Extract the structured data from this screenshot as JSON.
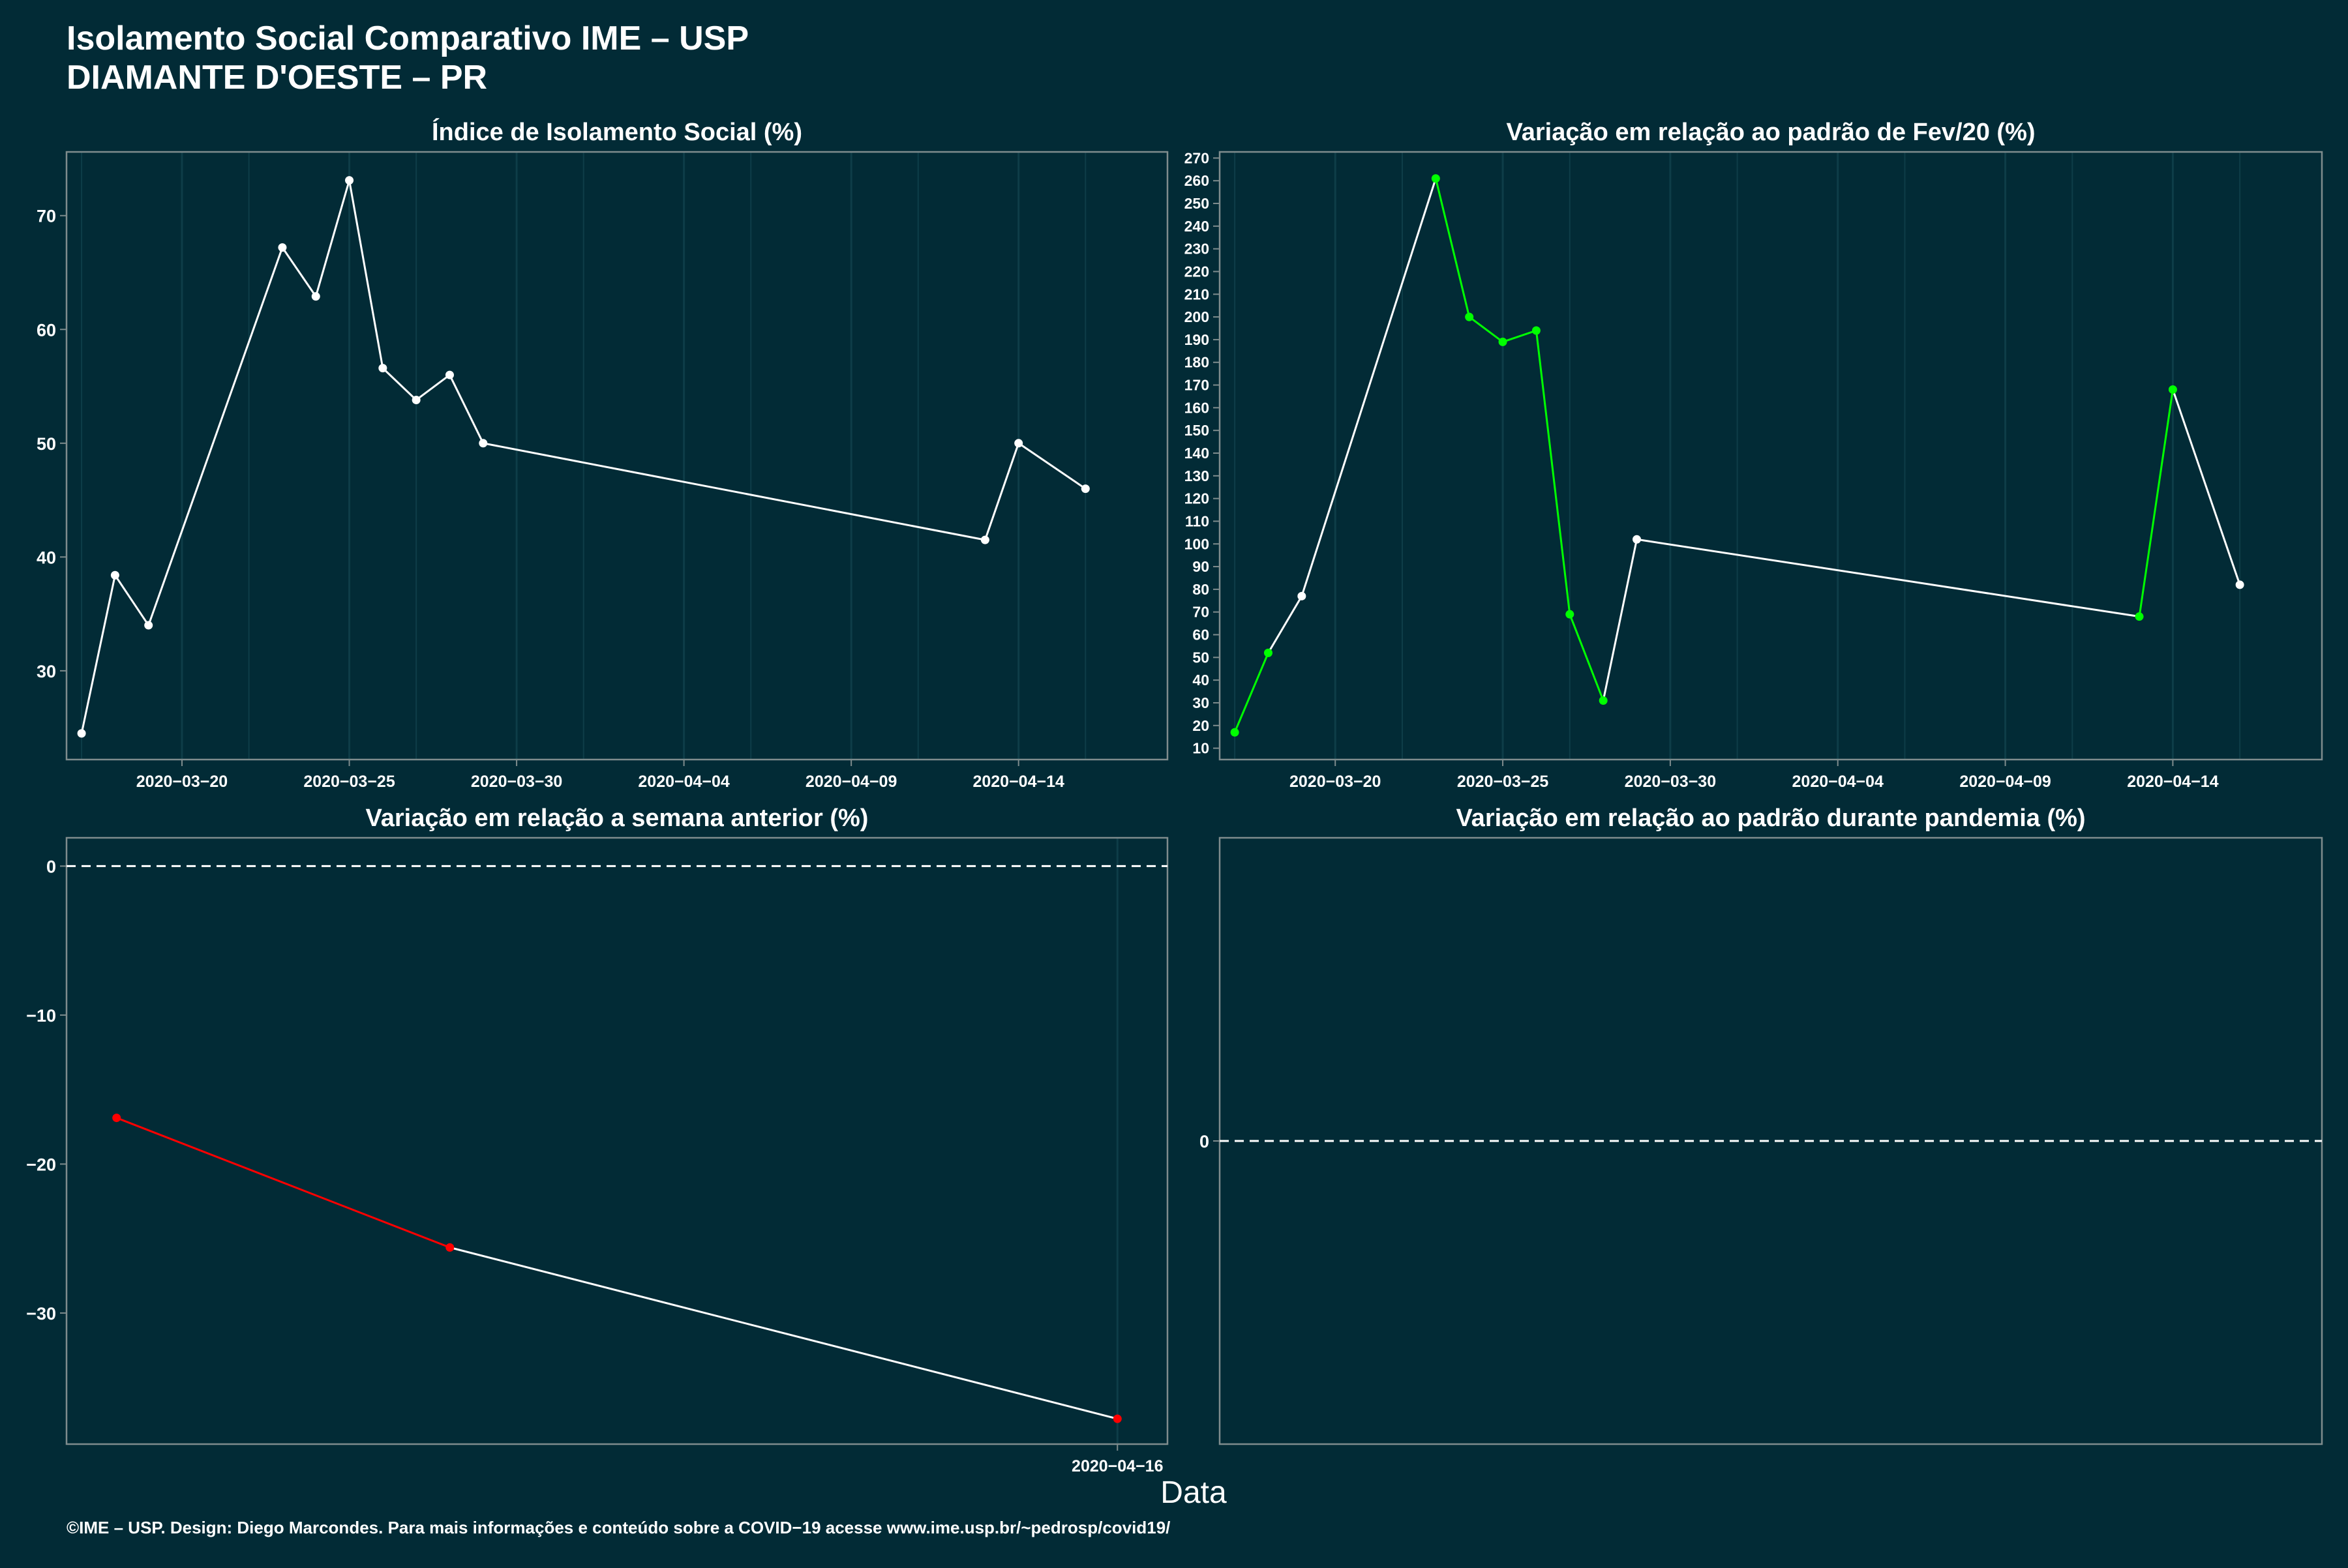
{
  "title_line1": "Isolamento Social Comparativo IME – USP",
  "title_line2": "DIAMANTE D'OESTE – PR",
  "x_axis_label": "Data",
  "footer": "©IME – USP. Design: Diego Marcondes. Para mais informações e conteúdo sobre a COVID−19 acesse www.ime.usp.br/~pedrosp/covid19/",
  "colors": {
    "background": "#022b36",
    "panel_border": "#7f8c8d",
    "line": "#ffffff",
    "green": "#00ff00",
    "red": "#ff0000",
    "grid": "#0e3d48"
  },
  "chart_data": [
    {
      "id": "isolamento",
      "type": "line",
      "title": "Índice de Isolamento Social (%)",
      "x_ticks": [
        "2020-03-20",
        "2020-03-25",
        "2020-03-30",
        "2020-04-04",
        "2020-04-09",
        "2020-04-14"
      ],
      "y_ticks": [
        30,
        40,
        50,
        60,
        70
      ],
      "ylim": [
        22.2,
        75.6
      ],
      "x_range": [
        "2020-03-16",
        "2020-04-18"
      ],
      "series": [
        {
          "points": [
            {
              "x": "2020-03-17",
              "y": 24.5
            },
            {
              "x": "2020-03-18",
              "y": 38.4
            },
            {
              "x": "2020-03-19",
              "y": 34.0
            },
            {
              "x": "2020-03-23",
              "y": 67.2
            },
            {
              "x": "2020-03-24",
              "y": 62.9
            },
            {
              "x": "2020-03-25",
              "y": 73.1
            },
            {
              "x": "2020-03-26",
              "y": 56.6
            },
            {
              "x": "2020-03-27",
              "y": 53.8
            },
            {
              "x": "2020-03-28",
              "y": 56.0
            },
            {
              "x": "2020-03-29",
              "y": 50.0
            },
            {
              "x": "2020-04-13",
              "y": 41.5
            },
            {
              "x": "2020-04-14",
              "y": 50.0
            },
            {
              "x": "2020-04-16",
              "y": 46.0
            }
          ]
        }
      ]
    },
    {
      "id": "fev20",
      "type": "line",
      "title": "Variação em relação ao padrão de Fev/20 (%)",
      "x_ticks": [
        "2020-03-20",
        "2020-03-25",
        "2020-03-30",
        "2020-04-04",
        "2020-04-09",
        "2020-04-14"
      ],
      "y_ticks": [
        10,
        20,
        30,
        40,
        50,
        60,
        70,
        80,
        90,
        100,
        110,
        120,
        130,
        140,
        150,
        160,
        170,
        180,
        190,
        200,
        210,
        220,
        230,
        240,
        250,
        260,
        270
      ],
      "ylim": [
        5,
        272.7
      ],
      "x_range": [
        "2020-03-16",
        "2020-04-18"
      ],
      "series": [
        {
          "points": [
            {
              "x": "2020-03-17",
              "y": 17,
              "c": "green"
            },
            {
              "x": "2020-03-18",
              "y": 52,
              "c": "green"
            },
            {
              "x": "2020-03-19",
              "y": 77,
              "c": "white"
            },
            {
              "x": "2020-03-23",
              "y": 261,
              "c": "green"
            },
            {
              "x": "2020-03-24",
              "y": 200,
              "c": "green"
            },
            {
              "x": "2020-03-25",
              "y": 189,
              "c": "green"
            },
            {
              "x": "2020-03-26",
              "y": 194,
              "c": "green"
            },
            {
              "x": "2020-03-27",
              "y": 69,
              "c": "green"
            },
            {
              "x": "2020-03-28",
              "y": 31,
              "c": "green"
            },
            {
              "x": "2020-03-29",
              "y": 102,
              "c": "white"
            },
            {
              "x": "2020-04-13",
              "y": 68,
              "c": "green"
            },
            {
              "x": "2020-04-14",
              "y": 168,
              "c": "green"
            },
            {
              "x": "2020-04-16",
              "y": 82,
              "c": "white"
            }
          ]
        }
      ]
    },
    {
      "id": "semana",
      "type": "line",
      "title": "Variação em relação a semana anterior (%)",
      "x_ticks": [
        "2020-04-16"
      ],
      "y_ticks": [
        -30,
        -20,
        -10,
        0
      ],
      "ylim": [
        -38.8,
        1.9
      ],
      "x_range_index": [
        -0.05,
        1.05
      ],
      "x_tick_pos": [
        1.0
      ],
      "hline": 0,
      "series": [
        {
          "points": [
            {
              "t": 0.0,
              "y": -16.9,
              "c": "red"
            },
            {
              "t": 0.333,
              "y": -25.6,
              "c": "red"
            },
            {
              "t": 1.0,
              "y": -37.1,
              "c": "red"
            }
          ],
          "segment_colors": [
            "red",
            "white"
          ]
        }
      ]
    },
    {
      "id": "pandemia",
      "type": "line",
      "title": "Variação em relação ao padrão durante pandemia (%)",
      "x_ticks": [],
      "y_ticks": [
        0
      ],
      "ylim": [
        -1,
        1
      ],
      "hline": 0,
      "series": []
    }
  ]
}
